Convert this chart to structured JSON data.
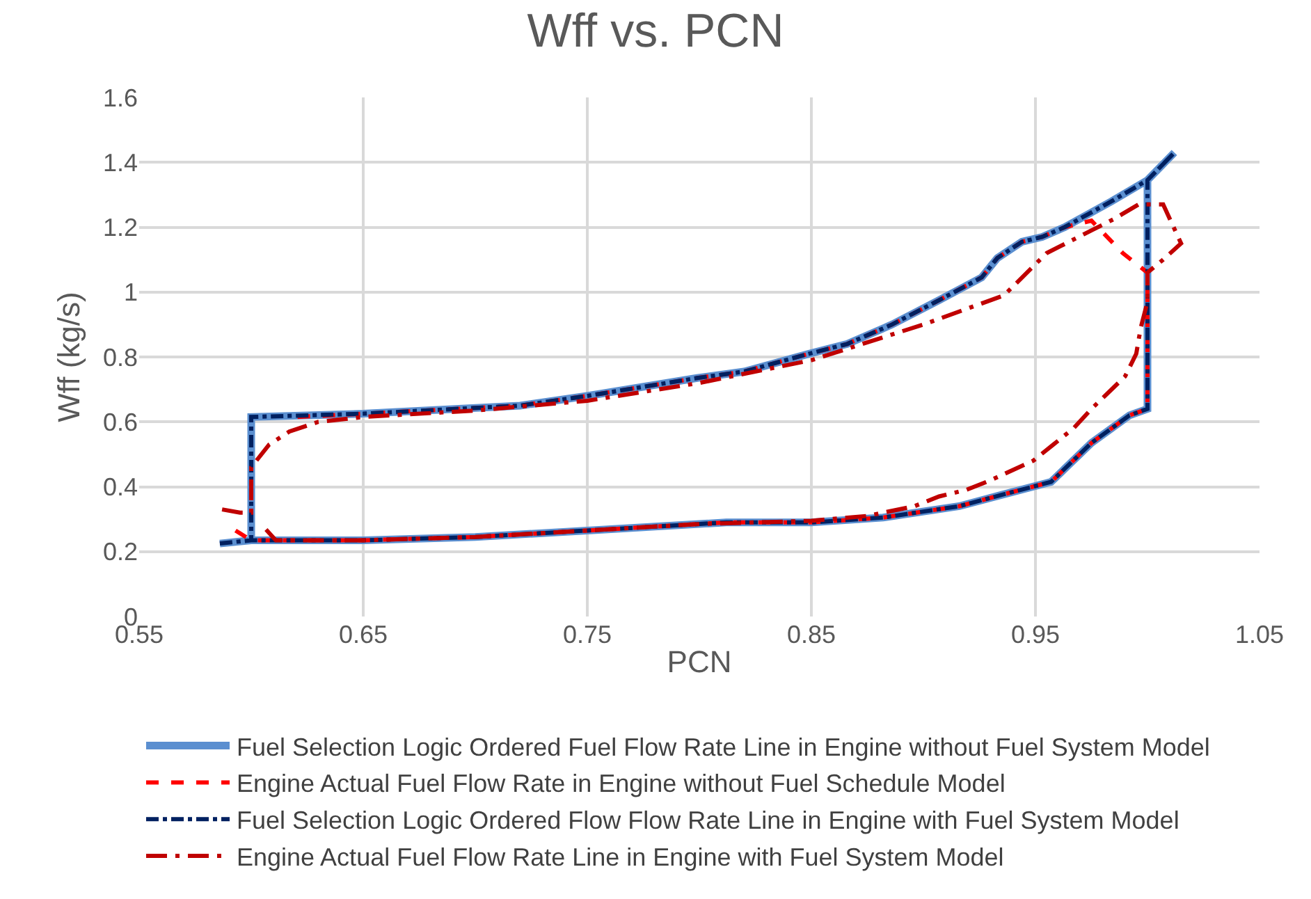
{
  "chart_data": {
    "type": "line",
    "title": "Wff vs. PCN",
    "xlabel": "PCN",
    "ylabel": "Wff (kg/s)",
    "xlim": [
      0.55,
      1.05
    ],
    "xticks": [
      0.55,
      0.65,
      0.75,
      0.85,
      0.95,
      1.05
    ],
    "ylim": [
      0,
      1.6
    ],
    "yticks": [
      0,
      0.2,
      0.4,
      0.6,
      0.8,
      1,
      1.2,
      1.4,
      1.6
    ],
    "grid": true,
    "legend": "bottom",
    "marker": "none",
    "series": [
      {
        "name": "Fuel Selection Logic Ordered Fuel Flow Rate Line in Engine without Fuel System Model",
        "color": "#5b8fd0",
        "line_style": "solid",
        "x": [
          0.586,
          0.6,
          0.65,
          0.7,
          0.75,
          0.812,
          0.85,
          0.882,
          0.916,
          0.935,
          0.957,
          0.975,
          0.992,
          1.0,
          1.0,
          1.012,
          1.0,
          0.984,
          0.963,
          0.953,
          0.944,
          0.933,
          0.926,
          0.907,
          0.886,
          0.866,
          0.849,
          0.82,
          0.799,
          0.75,
          0.72,
          0.65,
          0.6,
          0.6
        ],
        "values": [
          0.225,
          0.235,
          0.235,
          0.245,
          0.265,
          0.29,
          0.29,
          0.305,
          0.34,
          0.375,
          0.415,
          0.535,
          0.62,
          0.64,
          1.345,
          1.43,
          1.345,
          1.28,
          1.2,
          1.17,
          1.155,
          1.105,
          1.045,
          0.975,
          0.9,
          0.84,
          0.81,
          0.755,
          0.735,
          0.68,
          0.65,
          0.625,
          0.615,
          0.235
        ]
      },
      {
        "name": "Engine Actual Fuel Flow Rate in Engine without Fuel Schedule Model",
        "color": "#ff0000",
        "line_style": "dashed",
        "x": [
          0.593,
          0.6,
          0.65,
          0.7,
          0.75,
          0.812,
          0.85,
          0.882,
          0.916,
          0.935,
          0.957,
          0.975,
          0.992,
          1.0,
          1.0,
          0.989,
          0.975,
          0.963,
          0.953,
          0.944,
          0.933,
          0.926,
          0.907,
          0.886,
          0.866,
          0.849,
          0.82,
          0.799,
          0.75,
          0.72,
          0.65,
          0.62
        ],
        "values": [
          0.265,
          0.235,
          0.235,
          0.245,
          0.265,
          0.29,
          0.29,
          0.305,
          0.34,
          0.375,
          0.415,
          0.535,
          0.62,
          0.64,
          1.06,
          1.12,
          1.22,
          1.2,
          1.17,
          1.155,
          1.105,
          1.045,
          0.975,
          0.9,
          0.84,
          0.81,
          0.755,
          0.735,
          0.68,
          0.65,
          0.625,
          0.615
        ]
      },
      {
        "name": "Fuel Selection Logic Ordered Flow Flow Rate Line in Engine with Fuel System Model",
        "color": "#002060",
        "line_style": "dashdot",
        "x": [
          0.586,
          0.6,
          0.65,
          0.7,
          0.75,
          0.812,
          0.85,
          0.882,
          0.916,
          0.935,
          0.957,
          0.975,
          0.992,
          1.0,
          1.0,
          1.012,
          1.0,
          0.984,
          0.963,
          0.953,
          0.944,
          0.933,
          0.926,
          0.907,
          0.886,
          0.866,
          0.849,
          0.82,
          0.799,
          0.75,
          0.72,
          0.65,
          0.6,
          0.6
        ],
        "values": [
          0.225,
          0.235,
          0.235,
          0.245,
          0.265,
          0.29,
          0.29,
          0.305,
          0.34,
          0.375,
          0.415,
          0.535,
          0.62,
          0.64,
          1.345,
          1.43,
          1.345,
          1.28,
          1.2,
          1.17,
          1.155,
          1.105,
          1.045,
          0.975,
          0.9,
          0.84,
          0.81,
          0.755,
          0.735,
          0.68,
          0.65,
          0.625,
          0.615,
          0.235
        ]
      },
      {
        "name": "Engine Actual Fuel Flow Rate Line in Engine with Fuel System Model",
        "color": "#c00000",
        "line_style": "longdashdot",
        "x": [
          0.587,
          0.595,
          0.6,
          0.6,
          0.608,
          0.617,
          0.63,
          0.65,
          0.7,
          0.75,
          0.8,
          0.85,
          0.9,
          0.936,
          0.955,
          0.975,
          0.985,
          0.996,
          1.007,
          1.015,
          1.007,
          1.0,
          1.0,
          0.997,
          0.995,
          0.99,
          0.975,
          0.967,
          0.958,
          0.949,
          0.93,
          0.919,
          0.907,
          0.896,
          0.875,
          0.85,
          0.8,
          0.75,
          0.7,
          0.65,
          0.611,
          0.605
        ],
        "values": [
          0.33,
          0.32,
          0.32,
          0.46,
          0.53,
          0.57,
          0.6,
          0.615,
          0.635,
          0.665,
          0.72,
          0.79,
          0.9,
          0.99,
          1.12,
          1.19,
          1.225,
          1.27,
          1.27,
          1.15,
          1.1,
          1.06,
          0.97,
          0.89,
          0.81,
          0.74,
          0.64,
          0.58,
          0.53,
          0.48,
          0.42,
          0.39,
          0.37,
          0.34,
          0.31,
          0.295,
          0.285,
          0.265,
          0.245,
          0.235,
          0.235,
          0.28
        ]
      }
    ]
  }
}
